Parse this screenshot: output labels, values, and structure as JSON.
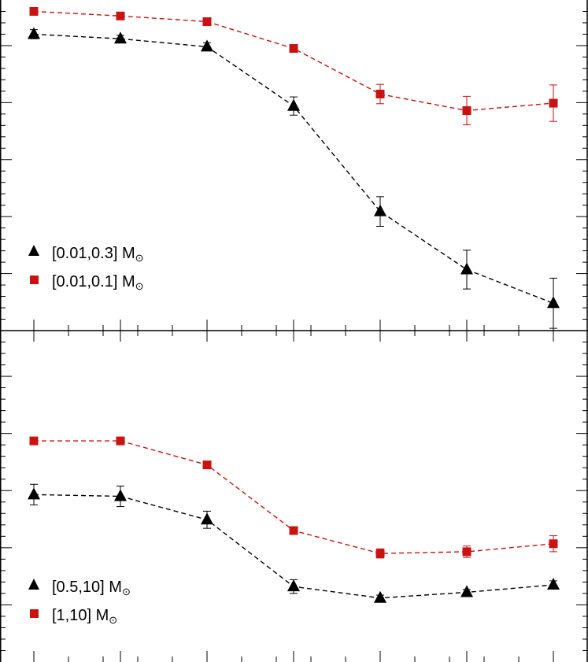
{
  "chart_data": [
    {
      "type": "scatter",
      "panel": "top",
      "x": [
        1,
        2,
        3,
        4,
        5,
        6,
        7
      ],
      "y_range": [
        0,
        5.8
      ],
      "series": [
        {
          "name": "[0.01,0.3]",
          "unit": "M",
          "unit_symbol": "⊙",
          "color": "#000000",
          "marker": "triangle",
          "y": [
            5.2,
            5.12,
            4.98,
            3.94,
            2.09,
            1.07,
            0.48
          ],
          "yerr": [
            0.08,
            0.06,
            0.07,
            0.16,
            0.26,
            0.34,
            0.44
          ]
        },
        {
          "name": "[0.01,0.1]",
          "unit": "M",
          "unit_symbol": "⊙",
          "color": "#cc1111",
          "marker": "square",
          "y": [
            5.6,
            5.52,
            5.42,
            4.95,
            4.15,
            3.86,
            3.99
          ],
          "yerr": [
            0.03,
            0.03,
            0.03,
            0.04,
            0.17,
            0.25,
            0.32
          ]
        }
      ],
      "legend_position": "bottom-left",
      "grid": false
    },
    {
      "type": "scatter",
      "panel": "bottom",
      "x": [
        1,
        2,
        3,
        4,
        5,
        6,
        7
      ],
      "y_range": [
        0,
        5.8
      ],
      "series": [
        {
          "name": "[0.5,10]",
          "unit": "M",
          "unit_symbol": "⊙",
          "color": "#000000",
          "marker": "triangle",
          "y": [
            2.93,
            2.9,
            2.49,
            1.32,
            1.12,
            1.22,
            1.35
          ],
          "yerr": [
            0.18,
            0.18,
            0.15,
            0.12,
            0.05,
            0.05,
            0.07
          ]
        },
        {
          "name": "[1,10]",
          "unit": "M",
          "unit_symbol": "⊙",
          "color": "#cc1111",
          "marker": "square",
          "y": [
            3.87,
            3.87,
            3.45,
            2.3,
            1.9,
            1.93,
            2.07
          ],
          "yerr": [
            0.03,
            0.03,
            0.03,
            0.04,
            0.08,
            0.1,
            0.14
          ]
        }
      ],
      "legend_position": "bottom-left",
      "grid": false
    }
  ]
}
